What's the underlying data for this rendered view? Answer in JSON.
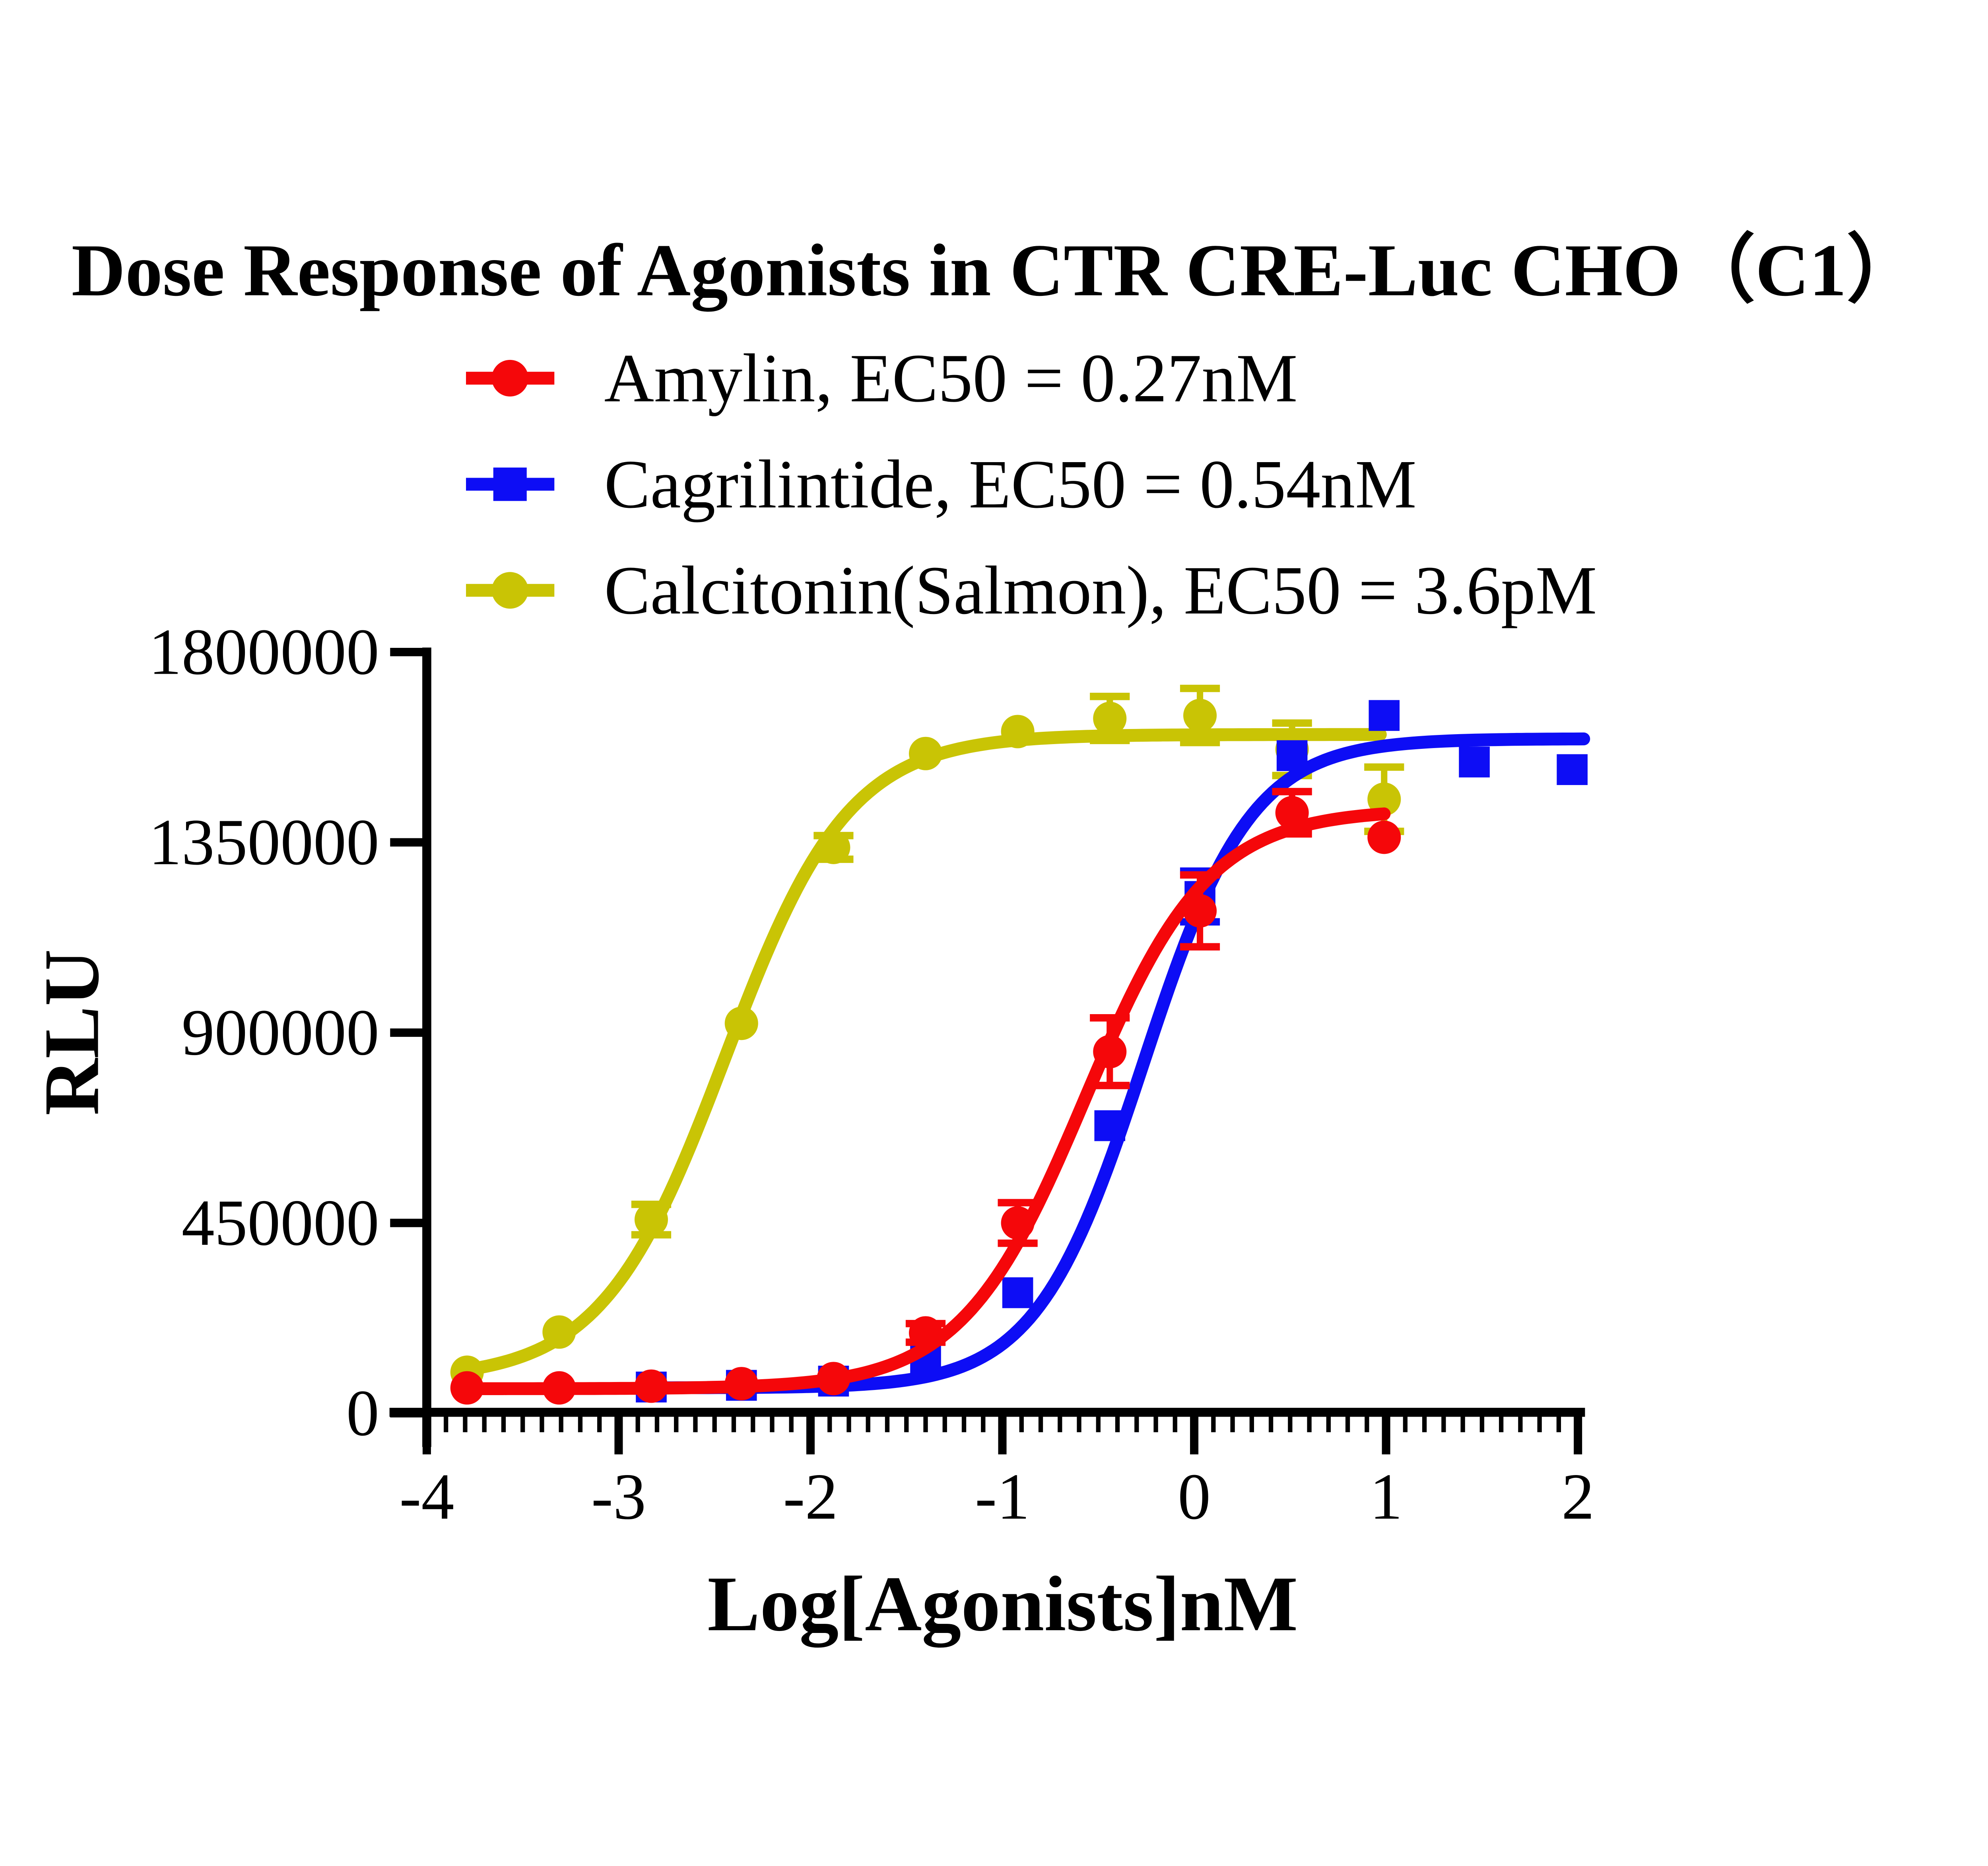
{
  "chart_data": {
    "type": "line",
    "title": "Dose Response of Agonists in CTR CRE-Luc CHO（C1）",
    "xlabel": "Log[Agonists]nM",
    "ylabel": "RLU",
    "xlim": [
      -4,
      2
    ],
    "ylim": [
      0,
      1800000
    ],
    "x_ticks": [
      -4,
      -3,
      -2,
      -1,
      0,
      1,
      2
    ],
    "x_minor_tick_step": 0.1,
    "y_ticks": [
      0,
      450000,
      900000,
      1350000,
      1800000
    ],
    "grid": false,
    "legend_position": "top-left-above-plot",
    "axis_color": "#000000",
    "background_color": "#ffffff",
    "series": [
      {
        "name": "Amylin",
        "legend_label": "Amylin, EC50 = 0.27nM",
        "ec50": "0.27nM",
        "color": "#F5070A",
        "marker": "circle",
        "points": [
          {
            "x": -3.79,
            "y": 60000,
            "err": 0
          },
          {
            "x": -3.31,
            "y": 60000,
            "err": 0
          },
          {
            "x": -2.83,
            "y": 64000,
            "err": 0
          },
          {
            "x": -2.36,
            "y": 70000,
            "err": 0
          },
          {
            "x": -1.88,
            "y": 82000,
            "err": 0
          },
          {
            "x": -1.4,
            "y": 190000,
            "err": 22000
          },
          {
            "x": -0.92,
            "y": 450000,
            "err": 48000
          },
          {
            "x": -0.44,
            "y": 855000,
            "err": 80000
          },
          {
            "x": 0.03,
            "y": 1188000,
            "err": 85000
          },
          {
            "x": 0.51,
            "y": 1420000,
            "err": 50000
          },
          {
            "x": 0.99,
            "y": 1362000,
            "err": 0
          }
        ],
        "fit": {
          "bottom": 58000,
          "top": 1428000,
          "logEC50": -0.57,
          "hill": 1.35,
          "x_start": -3.79,
          "x_end": 0.99
        }
      },
      {
        "name": "Cagrilintide",
        "legend_label": "Cagrilintide, EC50 = 0.54nM",
        "ec50": "0.54nM",
        "color": "#0D0DF5",
        "marker": "square",
        "points": [
          {
            "x": -2.83,
            "y": 62000,
            "err": 0
          },
          {
            "x": -2.36,
            "y": 66000,
            "err": 0
          },
          {
            "x": -1.88,
            "y": 76000,
            "err": 0
          },
          {
            "x": -1.4,
            "y": 131000,
            "err": 0
          },
          {
            "x": -0.92,
            "y": 285000,
            "err": 0
          },
          {
            "x": -0.44,
            "y": 680000,
            "err": 0
          },
          {
            "x": 0.03,
            "y": 1222000,
            "err": 60000
          },
          {
            "x": 0.51,
            "y": 1555000,
            "err": 0
          },
          {
            "x": 0.99,
            "y": 1650000,
            "err": 0
          },
          {
            "x": 1.46,
            "y": 1540000,
            "err": 0
          },
          {
            "x": 1.97,
            "y": 1522000,
            "err": 0
          }
        ],
        "fit": {
          "bottom": 60000,
          "top": 1595000,
          "logEC50": -0.265,
          "hill": 1.55,
          "x_start": -2.83,
          "x_end": 2.03
        }
      },
      {
        "name": "Calcitonin(Salmon)",
        "legend_label": "Calcitonin(Salmon),  EC50 = 3.6pM",
        "ec50": "3.6pM",
        "color": "#C9C405",
        "marker": "circle",
        "points": [
          {
            "x": -3.79,
            "y": 97000,
            "err": 0
          },
          {
            "x": -3.31,
            "y": 192000,
            "err": 0
          },
          {
            "x": -2.83,
            "y": 458000,
            "err": 36000
          },
          {
            "x": -2.36,
            "y": 922000,
            "err": 0
          },
          {
            "x": -1.88,
            "y": 1338000,
            "err": 28000
          },
          {
            "x": -1.4,
            "y": 1560000,
            "err": 0
          },
          {
            "x": -0.92,
            "y": 1612000,
            "err": 0
          },
          {
            "x": -0.44,
            "y": 1643000,
            "err": 52000
          },
          {
            "x": 0.03,
            "y": 1650000,
            "err": 64000
          },
          {
            "x": 0.51,
            "y": 1570000,
            "err": 62000
          },
          {
            "x": 0.99,
            "y": 1452000,
            "err": 76000
          }
        ],
        "fit": {
          "bottom": 80000,
          "top": 1605000,
          "logEC50": -2.444,
          "hill": 1.35,
          "x_start": -3.79,
          "x_end": 0.97
        }
      }
    ]
  }
}
